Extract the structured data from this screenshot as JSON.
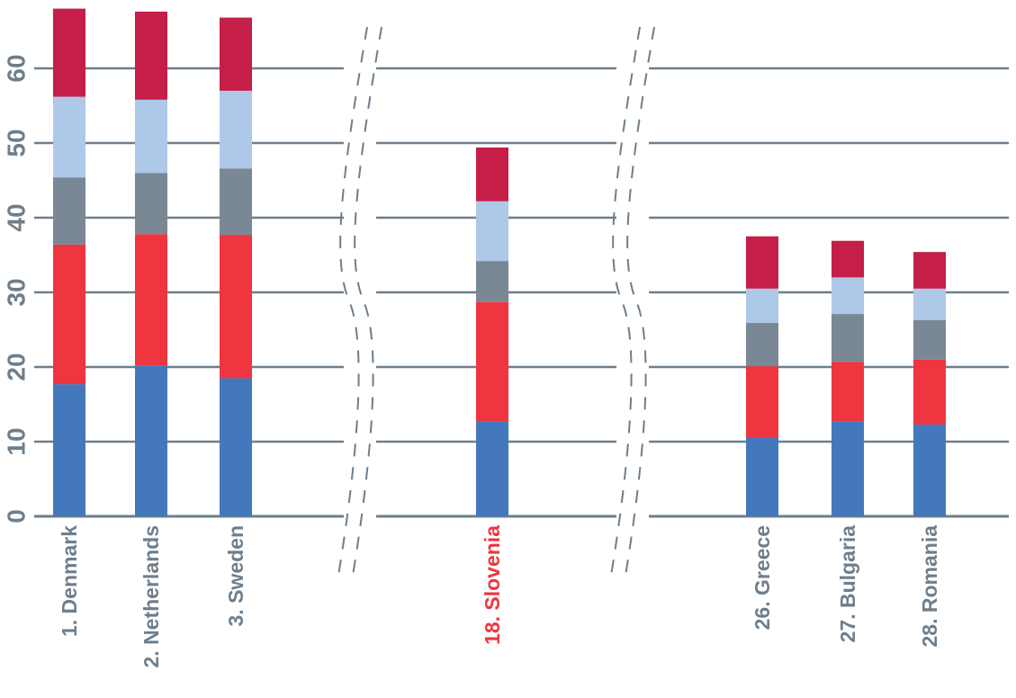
{
  "colors": {
    "axis": "#6E7E8B",
    "label": "#6E7E8B",
    "highlight": "#EE3540",
    "segments": [
      "#4478BC",
      "#EE3540",
      "#7A8794",
      "#AEC8E8",
      "#C51E48"
    ]
  },
  "chart_data": {
    "type": "bar",
    "stacked": true,
    "title": "",
    "xlabel": "",
    "ylabel": "",
    "ylim": [
      0,
      68
    ],
    "y_ticks": [
      "0",
      "10",
      "20",
      "30",
      "40",
      "50",
      "60"
    ],
    "grid": true,
    "legend": "none",
    "axis_breaks": [
      "between 3. Sweden and 18. Slovenia",
      "between 18. Slovenia and 26. Greece"
    ],
    "categories": [
      "1. Denmark",
      "2. Netherlands",
      "3. Sweden",
      "18. Slovenia",
      "26. Greece",
      "27. Bulgaria",
      "28. Romania"
    ],
    "highlighted_category": "18. Slovenia",
    "series": [
      {
        "color": "#4478BC",
        "values": [
          17.7,
          20.2,
          18.5,
          12.7,
          10.6,
          12.7,
          12.3
        ]
      },
      {
        "color": "#EE3540",
        "values": [
          18.7,
          17.6,
          19.2,
          16.0,
          9.5,
          8.0,
          8.7
        ]
      },
      {
        "color": "#7A8794",
        "values": [
          9.0,
          8.2,
          8.9,
          5.5,
          5.8,
          6.4,
          5.3
        ]
      },
      {
        "color": "#AEC8E8",
        "values": [
          10.8,
          9.8,
          10.4,
          8.0,
          4.6,
          4.9,
          4.2
        ]
      },
      {
        "color": "#C51E48",
        "values": [
          11.8,
          11.8,
          9.8,
          7.2,
          7.0,
          4.9,
          4.9
        ]
      }
    ]
  }
}
